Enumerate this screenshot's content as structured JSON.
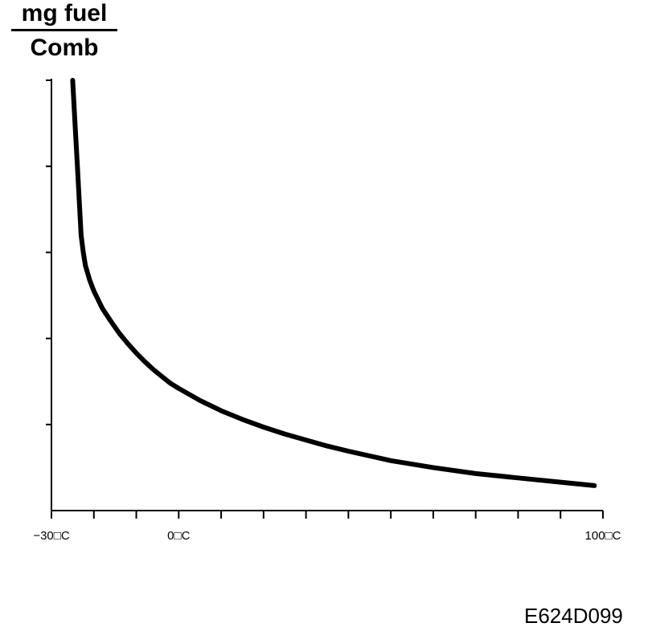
{
  "chart_data": {
    "type": "line",
    "title": "",
    "ylabel": {
      "numerator": "mg fuel",
      "denominator": "Comb"
    },
    "xlabel": "",
    "xlim": [
      -30,
      100
    ],
    "ylim": [
      0,
      5
    ],
    "x_tick_labels": [
      {
        "x": -30,
        "label": "−30□C"
      },
      {
        "x": 0,
        "label": "0□C"
      },
      {
        "x": 100,
        "label": "100□C"
      }
    ],
    "x_minor_ticks": [
      -20,
      -10,
      10,
      20,
      30,
      40,
      50,
      60,
      70,
      80,
      90
    ],
    "y_ticks": [
      1,
      2,
      3,
      4,
      5
    ],
    "grid": false,
    "series": [
      {
        "color": "#000000",
        "x": [
          -25,
          -24.5,
          -24,
          -23.5,
          -23,
          -22.5,
          -22,
          -21,
          -20,
          -18,
          -16,
          -14,
          -12,
          -10,
          -8,
          -6,
          -4,
          -2,
          0,
          5,
          10,
          15,
          20,
          25,
          30,
          35,
          40,
          50,
          60,
          70,
          80,
          90,
          98
        ],
        "y": [
          5.0,
          4.55,
          4.1,
          3.65,
          3.2,
          3.0,
          2.85,
          2.68,
          2.55,
          2.35,
          2.2,
          2.06,
          1.94,
          1.83,
          1.73,
          1.64,
          1.56,
          1.48,
          1.42,
          1.28,
          1.16,
          1.06,
          0.97,
          0.89,
          0.82,
          0.75,
          0.69,
          0.58,
          0.5,
          0.43,
          0.38,
          0.33,
          0.29
        ]
      }
    ]
  },
  "figure_code": "E624D099"
}
